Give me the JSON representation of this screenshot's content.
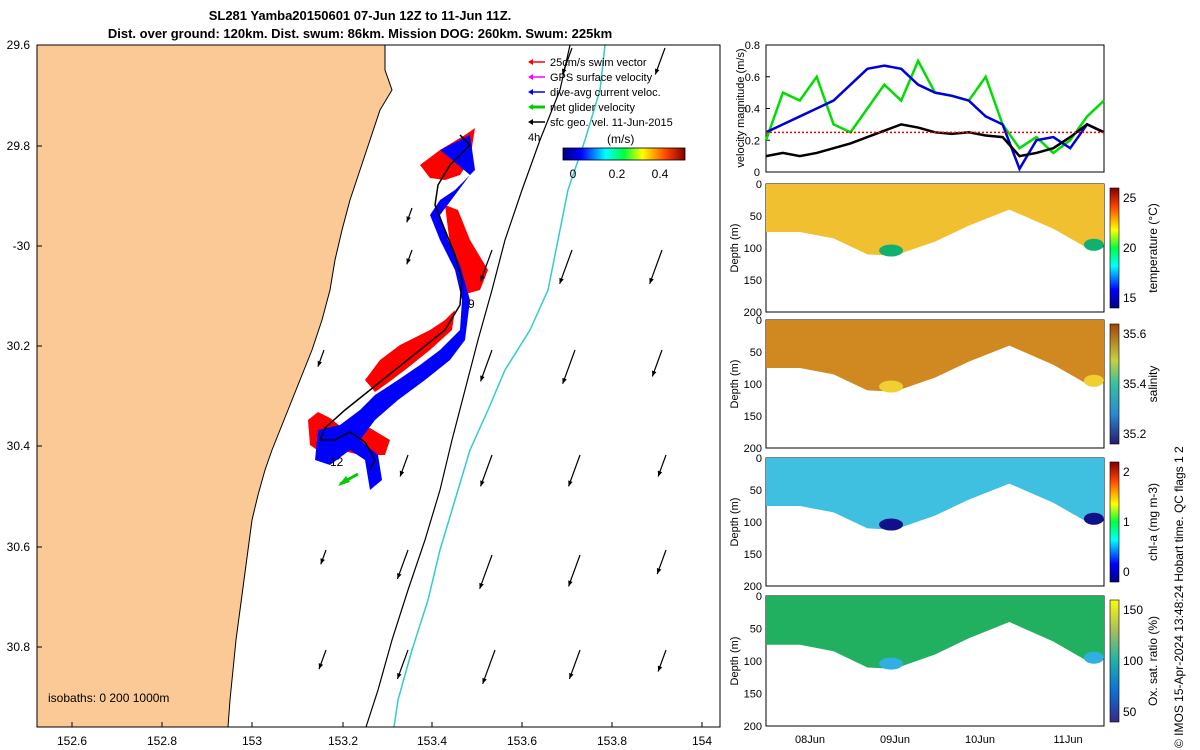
{
  "header": {
    "line1": "SL281 Yamba20150601 07-Jun 12Z to 11-Jun 11Z.",
    "line2": "Dist. over ground: 120km. Dist. swum: 86km. Mission DOG: 260km. Swum: 225km"
  },
  "map": {
    "lat_ticks": [
      "29.6",
      "29.8",
      "-30",
      "30.2",
      "30.4",
      "30.6",
      "30.8"
    ],
    "lon_ticks": [
      "152.6",
      "152.8",
      "153",
      "153.2",
      "153.4",
      "153.6",
      "153.8",
      "154"
    ],
    "legend": [
      {
        "label": "25cm/s swim vector",
        "color": "#ff0000"
      },
      {
        "label": "GPS surface velocity",
        "color": "#ff00ff"
      },
      {
        "label": "dive-avg current veloc.",
        "color": "#0000ff"
      },
      {
        "label": "net glider velocity",
        "color": "#00cc00"
      },
      {
        "label": "sfc geo. vel. 11-Jun-2015",
        "color": "#000000"
      }
    ],
    "colorbar": {
      "unit": "(m/s)",
      "tick_labels": [
        "0",
        "0.2",
        "0.4"
      ]
    },
    "marker_4h": "4h",
    "day_labels": [
      "9",
      "12"
    ],
    "isobaths": "isobaths: 0   200  1000m",
    "colors": {
      "land": "#fbc995",
      "blue_track": "#0000ff",
      "red_track": "#ff0000",
      "isobath_200": "#000000",
      "isobath_1000": "#33cccc"
    }
  },
  "chart_data": [
    {
      "type": "line",
      "title": "",
      "ylabel": "velocity magnitude (m/s)",
      "ylim": [
        0,
        0.8
      ],
      "yticks": [
        "0",
        "0.2",
        "0.4",
        "0.6",
        "0.8"
      ],
      "x": [
        0,
        0.05,
        0.1,
        0.15,
        0.2,
        0.25,
        0.3,
        0.35,
        0.4,
        0.45,
        0.5,
        0.55,
        0.6,
        0.65,
        0.7,
        0.75,
        0.8,
        0.85,
        0.9,
        0.95,
        1
      ],
      "series": [
        {
          "values": [
            0.2,
            0.5,
            0.45,
            0.6,
            0.3,
            0.25,
            0.4,
            0.55,
            0.45,
            0.7,
            0.5,
            0.48,
            0.45,
            0.6,
            0.3,
            0.15,
            0.22,
            0.12,
            0.2,
            0.35,
            0.45
          ],
          "color": "#00dd00"
        },
        {
          "values": [
            0.25,
            0.3,
            0.35,
            0.4,
            0.45,
            0.55,
            0.65,
            0.67,
            0.65,
            0.55,
            0.5,
            0.48,
            0.45,
            0.35,
            0.3,
            0.02,
            0.2,
            0.22,
            0.15,
            0.3,
            0.25
          ],
          "color": "#0000dd"
        },
        {
          "values": [
            0.1,
            0.12,
            0.1,
            0.12,
            0.15,
            0.18,
            0.22,
            0.26,
            0.3,
            0.28,
            0.25,
            0.24,
            0.25,
            0.23,
            0.22,
            0.1,
            0.12,
            0.15,
            0.22,
            0.3,
            0.25
          ],
          "color": "#000000"
        },
        {
          "values": [
            0.25,
            0.25,
            0.25,
            0.25,
            0.25,
            0.25,
            0.25,
            0.25,
            0.25,
            0.25,
            0.25,
            0.25,
            0.25,
            0.25,
            0.25,
            0.25,
            0.25,
            0.25,
            0.25,
            0.25,
            0.25
          ],
          "color": "#ff0000",
          "dashed": true
        }
      ]
    },
    {
      "type": "heatmap",
      "ylabel": "Depth (m)",
      "clabel": "temperature (°C)",
      "yticks": [
        "0",
        "50",
        "100",
        "150",
        "200"
      ],
      "cticks": [
        "25",
        "20",
        "15"
      ]
    },
    {
      "type": "heatmap",
      "ylabel": "Depth (m)",
      "clabel": "salinity",
      "yticks": [
        "0",
        "50",
        "100",
        "150",
        "200"
      ],
      "cticks": [
        "35.6",
        "35.4",
        "35.2"
      ]
    },
    {
      "type": "heatmap",
      "ylabel": "Depth (m)",
      "clabel": "chl-a (mg m-3)",
      "yticks": [
        "0",
        "50",
        "100",
        "150",
        "200"
      ],
      "cticks": [
        "2",
        "1",
        "0"
      ]
    },
    {
      "type": "heatmap",
      "ylabel": "Depth (m)",
      "clabel": "Ox. sat. ratio (%)",
      "yticks": [
        "0",
        "50",
        "100",
        "150",
        "200"
      ],
      "cticks": [
        "150",
        "100",
        "50"
      ],
      "xticks": [
        "08Jun",
        "09Jun",
        "10Jun",
        "11Jun"
      ]
    }
  ],
  "qc_label": "QC flags 1  2",
  "credit": "© IMOS 15-Apr-2024 13:48:24 Hobart time."
}
